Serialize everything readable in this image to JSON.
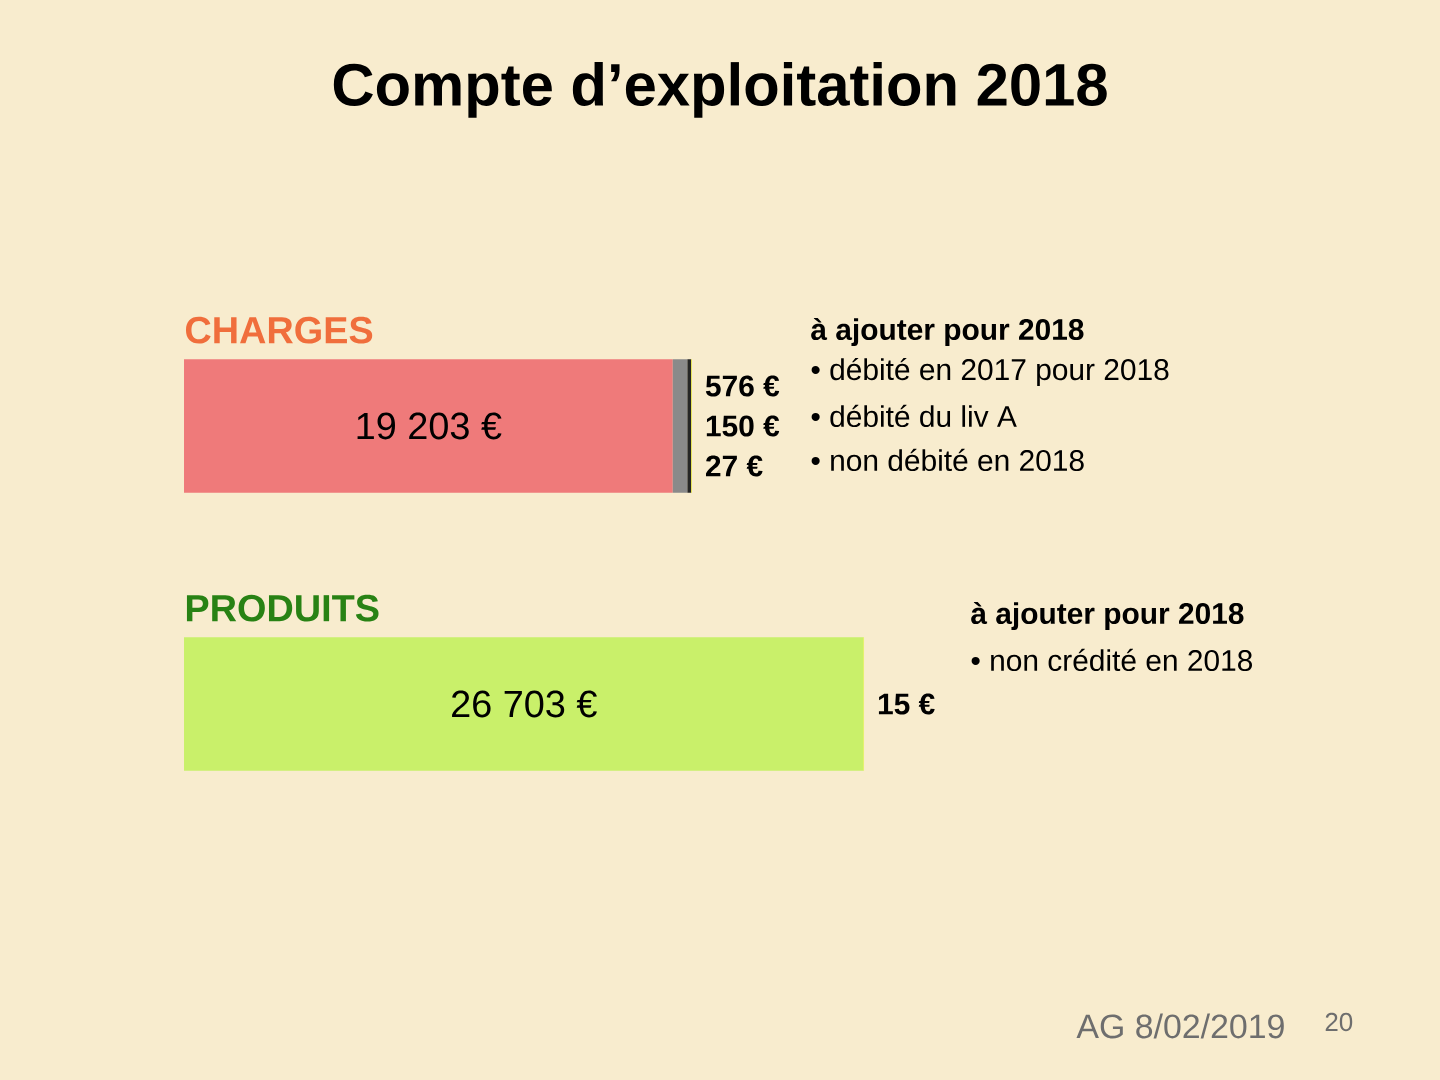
{
  "chart_data": {
    "type": "bar",
    "title": "Compte d’exploitation 2018",
    "orientation": "horizontal",
    "stacked": true,
    "categories": [
      "CHARGES",
      "PRODUITS"
    ],
    "series": [
      {
        "colors": [
          "#ef7a7a",
          "#c9f06a"
        ],
        "values": [
          19203,
          26703
        ],
        "value_labels": [
          "19 203 €",
          "26 703 €"
        ]
      },
      {
        "color": "#8a8a8a",
        "values": [
          576,
          null
        ],
        "value_labels": [
          "576 €",
          null
        ]
      },
      {
        "color": "#262626",
        "values": [
          150,
          null
        ],
        "value_labels": [
          "150 €",
          null
        ]
      },
      {
        "color": "#f5f53a",
        "values": [
          27,
          15
        ],
        "value_labels": [
          "27 €",
          "15 €"
        ]
      }
    ],
    "annotations": [
      "à  ajouter pour 2018",
      "• débité en 2017 pour 2018",
      "• débité du liv A",
      "• non débité en 2018",
      "à ajouter pour 2018",
      "• non crédité en 2018",
      "AG 8/02/2019",
      "20"
    ]
  }
}
